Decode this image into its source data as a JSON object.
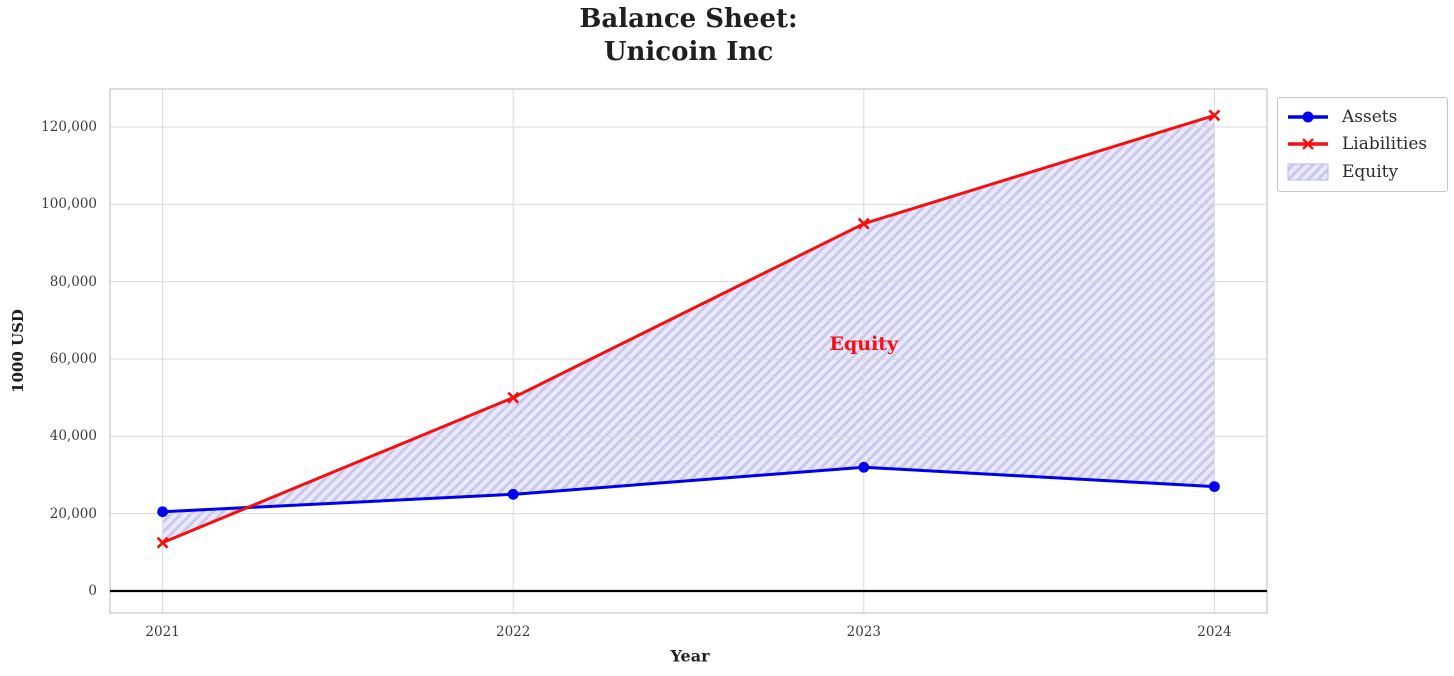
{
  "figure": {
    "title_line1": "Balance Sheet:",
    "title_line2": "Unicoin Inc"
  },
  "chart_data": {
    "type": "line",
    "title": "Balance Sheet:\nUnicoin Inc",
    "xlabel": "Year",
    "ylabel": "1000 USD",
    "x": [
      2021,
      2022,
      2023,
      2024
    ],
    "xtick_labels": [
      "2021",
      "2022",
      "2023",
      "2024"
    ],
    "series": [
      {
        "name": "Assets",
        "color": "#0000f0",
        "marker": "circle",
        "line_width": 3,
        "values": [
          20500,
          25000,
          32000,
          27000
        ]
      },
      {
        "name": "Liabilities",
        "color": "#f50f0f",
        "marker": "x",
        "line_width": 3,
        "values": [
          12500,
          50000,
          95000,
          123000
        ]
      }
    ],
    "fill_region": {
      "label": "Equity",
      "between": [
        "Assets",
        "Liabilities"
      ],
      "facecolor": "#e9e9fb",
      "hatch_color": "#c9c9f0",
      "hatch": "//",
      "swatch_border": "#b7b7ec"
    },
    "annotation": {
      "text": "Equity",
      "color": "#f50f0f",
      "x": 2023,
      "y": 64000
    },
    "yticks": [
      0,
      20000,
      40000,
      60000,
      80000,
      100000,
      120000
    ],
    "ytick_labels": [
      "0",
      "20,000",
      "40,000",
      "60,000",
      "80,000",
      "100,000",
      "120,000"
    ],
    "xlim": [
      2020.85,
      2024.15
    ],
    "ylim": [
      -5690,
      129830
    ],
    "grid": true,
    "grid_color": "#d9d9d9",
    "frame_color": "#c6c6c6",
    "zero_line": {
      "y": 0,
      "color": "#000000"
    },
    "legend": {
      "position": "upper-right-outside",
      "entries": [
        "Assets",
        "Liabilities",
        "Equity"
      ]
    }
  }
}
